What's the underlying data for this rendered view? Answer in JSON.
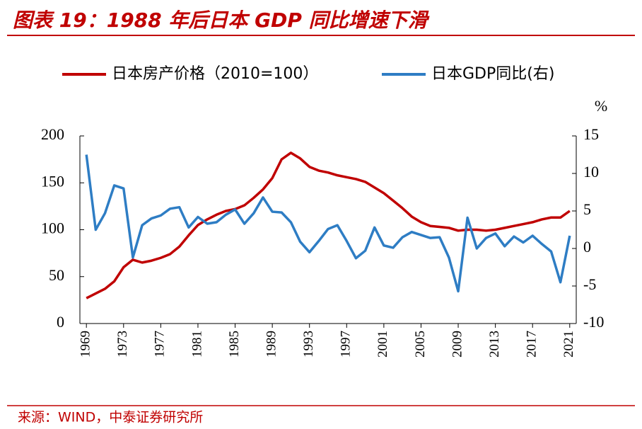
{
  "chart_data": {
    "type": "line",
    "title": "图表 19：1988 年后日本 GDP 同比增速下滑",
    "y2label": "%",
    "x": [
      1969,
      1970,
      1971,
      1972,
      1973,
      1974,
      1975,
      1976,
      1977,
      1978,
      1979,
      1980,
      1981,
      1982,
      1983,
      1984,
      1985,
      1986,
      1987,
      1988,
      1989,
      1990,
      1991,
      1992,
      1993,
      1994,
      1995,
      1996,
      1997,
      1998,
      1999,
      2000,
      2001,
      2002,
      2003,
      2004,
      2005,
      2006,
      2007,
      2008,
      2009,
      2010,
      2011,
      2012,
      2013,
      2014,
      2015,
      2016,
      2017,
      2018,
      2019,
      2020,
      2021
    ],
    "xlim": [
      1968.3,
      2021.7
    ],
    "xticks": [
      1969,
      1973,
      1977,
      1981,
      1985,
      1989,
      1993,
      1997,
      2001,
      2005,
      2009,
      2013,
      2017,
      2021
    ],
    "ylim": [
      0,
      200
    ],
    "yticks": [
      0,
      50,
      100,
      150,
      200
    ],
    "y2lim": [
      -10,
      15
    ],
    "y2ticks": [
      -10,
      -5,
      0,
      5,
      10,
      15
    ],
    "series": [
      {
        "name": "日本房产价格（2010=100）",
        "color": "#c00000",
        "values": [
          27,
          32,
          37,
          45,
          60,
          68,
          65,
          67,
          70,
          74,
          82,
          94,
          105,
          111,
          116,
          120,
          122,
          126,
          134,
          143,
          155,
          175,
          182,
          176,
          167,
          163,
          161,
          158,
          156,
          154,
          151,
          145,
          139,
          131,
          123,
          114,
          108,
          104,
          103,
          102,
          99,
          100,
          100,
          99,
          100,
          102,
          104,
          106,
          108,
          111,
          113,
          113,
          120
        ]
      },
      {
        "name": "日本GDP同比(右)",
        "color": "#2e7dc4",
        "axis": "y2",
        "values": [
          12.5,
          2.5,
          4.7,
          8.4,
          8.0,
          -1.2,
          3.1,
          4.0,
          4.4,
          5.3,
          5.5,
          2.8,
          4.2,
          3.3,
          3.5,
          4.5,
          5.2,
          3.3,
          4.7,
          6.8,
          4.9,
          4.8,
          3.5,
          0.9,
          -0.5,
          1.0,
          2.6,
          3.1,
          1.0,
          -1.3,
          -0.3,
          2.8,
          0.4,
          0.1,
          1.5,
          2.2,
          1.8,
          1.4,
          1.5,
          -1.2,
          -5.7,
          4.1,
          0.0,
          1.4,
          2.0,
          0.3,
          1.6,
          0.8,
          1.7,
          0.6,
          -0.4,
          -4.5,
          1.7
        ]
      }
    ]
  },
  "source": "来源：WIND，中泰证券研究所"
}
